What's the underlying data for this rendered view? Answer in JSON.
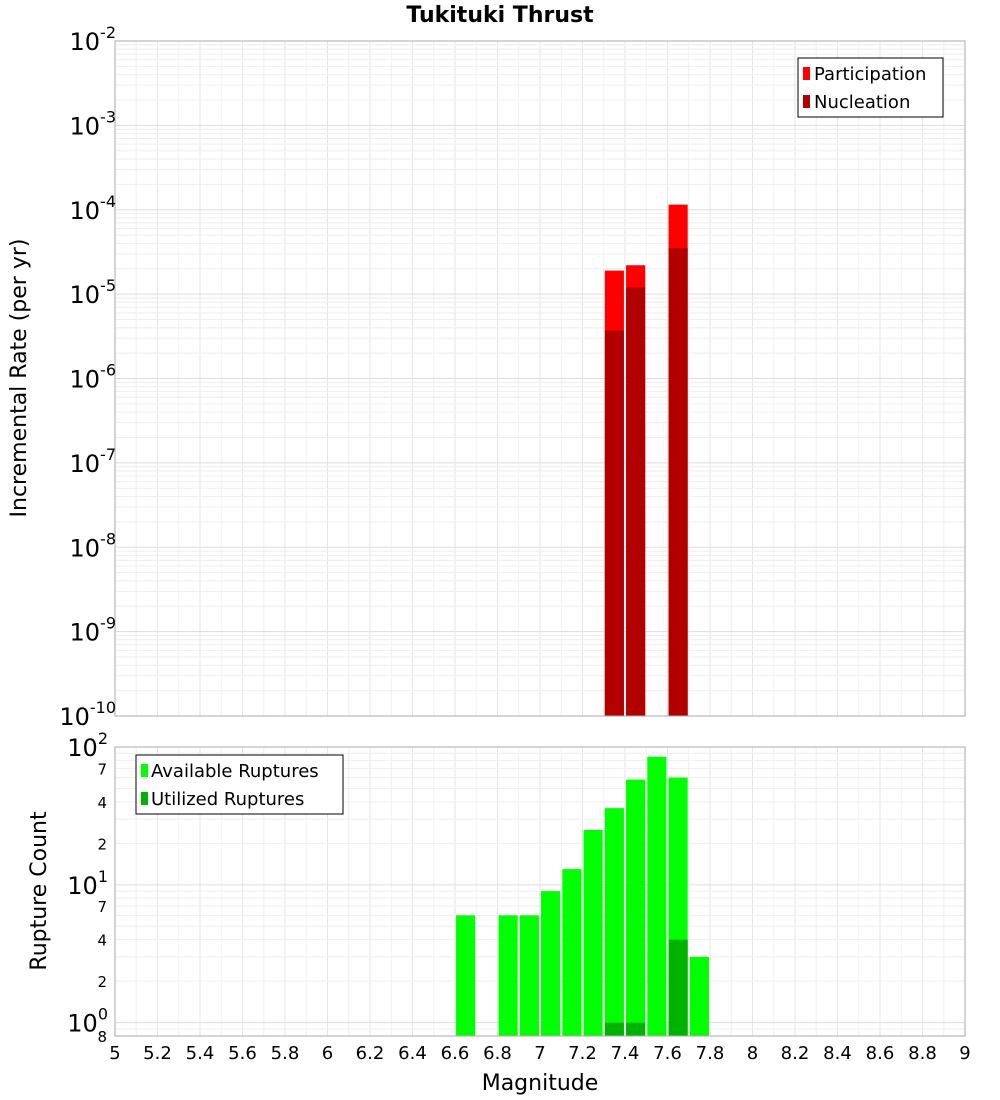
{
  "chart_data": [
    {
      "type": "bar",
      "title": "Tukituki Thrust",
      "ylabel": "Incremental Rate (per yr)",
      "xlabel": "",
      "xlim": [
        5,
        9
      ],
      "ylim": [
        1e-10,
        0.01
      ],
      "yscale": "log",
      "grid": true,
      "legend_position": "top-right",
      "bar_width": 0.09,
      "y_major_ticks": [
        {
          "base": "10",
          "exp": "-2",
          "value": 0.01
        },
        {
          "base": "10",
          "exp": "-3",
          "value": 0.001
        },
        {
          "base": "10",
          "exp": "-4",
          "value": 0.0001
        },
        {
          "base": "10",
          "exp": "-5",
          "value": 1e-05
        },
        {
          "base": "10",
          "exp": "-6",
          "value": 1e-06
        },
        {
          "base": "10",
          "exp": "-7",
          "value": 1e-07
        },
        {
          "base": "10",
          "exp": "-8",
          "value": 1e-08
        },
        {
          "base": "10",
          "exp": "-9",
          "value": 1e-09
        },
        {
          "base": "10",
          "exp": "-10",
          "value": 1e-10
        }
      ],
      "series": [
        {
          "name": "Participation",
          "color": "#ff0000",
          "x": [
            7.35,
            7.45,
            7.65
          ],
          "values": [
            1.9e-05,
            2.2e-05,
            0.000115
          ]
        },
        {
          "name": "Nucleation",
          "color": "#b20000",
          "x": [
            7.35,
            7.45,
            7.65
          ],
          "values": [
            3.7e-06,
            1.2e-05,
            3.5e-05
          ]
        }
      ]
    },
    {
      "type": "bar",
      "title": "",
      "xlabel": "Magnitude",
      "ylabel": "Rupture Count",
      "xlim": [
        5,
        9
      ],
      "ylim": [
        0.8,
        100
      ],
      "yscale": "log",
      "grid": true,
      "legend_position": "top-left",
      "bar_width": 0.09,
      "x_ticks": [
        "5",
        "5.2",
        "5.4",
        "5.6",
        "5.8",
        "6",
        "6.2",
        "6.4",
        "6.6",
        "6.8",
        "7",
        "7.2",
        "7.4",
        "7.6",
        "7.8",
        "8",
        "8.2",
        "8.4",
        "8.6",
        "8.8",
        "9"
      ],
      "y_major_ticks": [
        {
          "base": "10",
          "exp": "2",
          "value": 100
        },
        {
          "base": "10",
          "exp": "1",
          "value": 10
        },
        {
          "base": "10",
          "exp": "0",
          "value": 1
        }
      ],
      "y_minor_ticks": [
        {
          "label": "7",
          "value": 70
        },
        {
          "label": "4",
          "value": 40
        },
        {
          "label": "2",
          "value": 20
        },
        {
          "label": "7",
          "value": 7
        },
        {
          "label": "4",
          "value": 4
        },
        {
          "label": "2",
          "value": 2
        },
        {
          "label": "8",
          "value": 0.8
        }
      ],
      "series": [
        {
          "name": "Available Ruptures",
          "color": "#00ff00",
          "x": [
            6.65,
            6.85,
            6.95,
            7.05,
            7.15,
            7.25,
            7.35,
            7.45,
            7.55,
            7.65,
            7.75
          ],
          "values": [
            6,
            6,
            6,
            9,
            13,
            25,
            36,
            58,
            85,
            60,
            3
          ]
        },
        {
          "name": "Utilized Ruptures",
          "color": "#00b300",
          "x": [
            7.35,
            7.45,
            7.65
          ],
          "values": [
            1,
            1,
            4
          ]
        }
      ]
    }
  ]
}
